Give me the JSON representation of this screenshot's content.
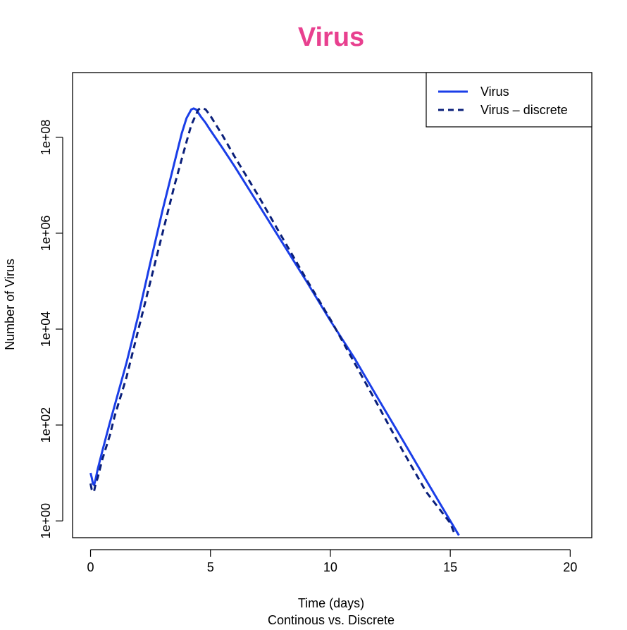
{
  "chart_data": {
    "type": "line",
    "title": "Virus",
    "xlabel": "Time (days)",
    "subtitle": "Continous vs. Discrete",
    "ylabel": "Number of Virus",
    "xlim": [
      -0.75,
      20.9
    ],
    "ylim_log10": [
      -0.35,
      9.35
    ],
    "y_scale": "log",
    "x_ticks": [
      0,
      5,
      10,
      15,
      20
    ],
    "x_tick_labels": [
      "0",
      "5",
      "10",
      "15",
      "20"
    ],
    "y_ticks_log10": [
      0,
      2,
      4,
      6,
      8
    ],
    "y_tick_labels": [
      "1e+00",
      "1e+02",
      "1e+04",
      "1e+06",
      "1e+08"
    ],
    "grid": false,
    "legend_placement": "top-right",
    "series": [
      {
        "name": "Virus",
        "line_style": "solid",
        "color": "#1a3ee8",
        "x": [
          0,
          0.05,
          0.1,
          0.15,
          0.2,
          0.3,
          0.5,
          0.8,
          1.0,
          1.5,
          2.0,
          2.5,
          3.0,
          3.5,
          3.8,
          4.0,
          4.2,
          4.3,
          4.4,
          4.6,
          4.8,
          5.0,
          5.5,
          6.0,
          7.0,
          8.0,
          9.0,
          10.0,
          11.0,
          12.0,
          13.0,
          14.0,
          15.0,
          15.36
        ],
        "y": [
          10,
          8,
          6,
          5.6,
          7,
          12,
          30,
          110,
          250,
          2000,
          20000,
          250000,
          3000000,
          30000000,
          120000000,
          250000000,
          380000000,
          400000000,
          380000000,
          270000000,
          200000000,
          140000000,
          60000000,
          25000000,
          4000000,
          630000,
          100000,
          15000,
          2500,
          350,
          50,
          7,
          1,
          0.5
        ]
      },
      {
        "name": "Virus – discrete",
        "line_style": "dashed",
        "color": "#0a1f7a",
        "x": [
          0,
          0.05,
          0.1,
          0.15,
          0.2,
          0.3,
          0.5,
          0.8,
          1.0,
          1.5,
          2.0,
          2.5,
          3.0,
          3.5,
          4.0,
          4.2,
          4.4,
          4.5,
          4.6,
          4.7,
          4.8,
          5.0,
          5.5,
          6.0,
          7.0,
          8.0,
          9.0,
          10.0,
          11.0,
          12.0,
          13.0,
          14.0,
          15.0,
          15.2
        ],
        "y": [
          6,
          4.5,
          4,
          4.2,
          5.5,
          8,
          20,
          60,
          150,
          1000,
          10000,
          100000,
          1000000,
          10000000,
          80000000,
          180000000,
          300000000,
          380000000,
          410000000,
          400000000,
          380000000,
          280000000,
          110000000,
          40000000,
          6000000,
          800000,
          110000,
          16000,
          2000,
          250,
          30,
          4,
          0.9,
          0.5
        ]
      }
    ]
  }
}
